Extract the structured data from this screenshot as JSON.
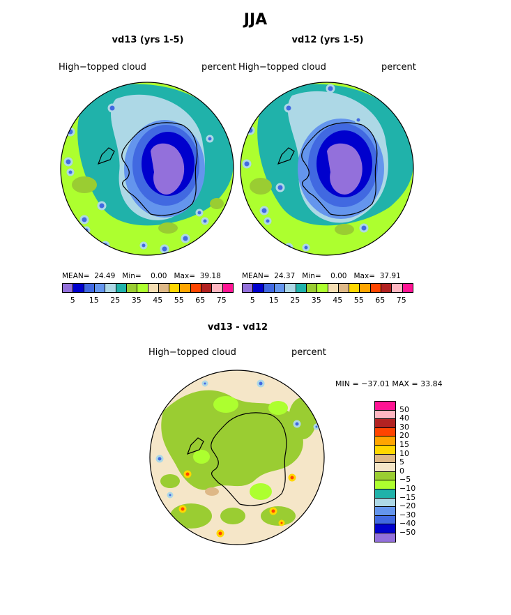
{
  "title": "JJA",
  "palette": {
    "levels": [
      "#9370db",
      "#0000cd",
      "#4169e1",
      "#6495ed",
      "#add8e6",
      "#20b2aa",
      "#9acd32",
      "#adff2f",
      "#f5deb3",
      "#deb887",
      "#ffd700",
      "#ffa500",
      "#ff4500",
      "#b22222",
      "#ffb6c1",
      "#ff1493"
    ],
    "diff": [
      "#ff1493",
      "#ffb6c1",
      "#b22222",
      "#ff4500",
      "#ffa500",
      "#ffd700",
      "#deb887",
      "#f5e6c8",
      "#9acd32",
      "#adff2f",
      "#20b2aa",
      "#add8e6",
      "#6495ed",
      "#4169e1",
      "#0000cd",
      "#9370db"
    ],
    "coast": "#000000"
  },
  "panels": [
    {
      "subtitle": "vd13 (yrs 1-5)",
      "field": "High−topped cloud",
      "units": "percent",
      "mean_label": "MEAN=",
      "mean": "24.49",
      "min_label": "Min=",
      "min": "0.00",
      "max_label": "Max=",
      "max": "39.18"
    },
    {
      "subtitle": "vd12 (yrs 1-5)",
      "field": "High−topped cloud",
      "units": "percent",
      "mean_label": "MEAN=",
      "mean": "24.37",
      "min_label": "Min=",
      "min": "0.00",
      "max_label": "Max=",
      "max": "37.91"
    }
  ],
  "colorbar_ticks": [
    "5",
    "15",
    "25",
    "35",
    "45",
    "55",
    "65",
    "75"
  ],
  "diff": {
    "subtitle": "vd13 - vd12",
    "field": "High−topped cloud",
    "units": "percent",
    "minmax": "MIN = −37.01 MAX =   33.84",
    "ticks": [
      "50",
      "40",
      "30",
      "20",
      "15",
      "10",
      "5",
      "0",
      "−5",
      "−10",
      "−15",
      "−20",
      "−30",
      "−40",
      "−50"
    ]
  },
  "chart_data": {
    "type": "heatmap",
    "projection": "south polar stereographic",
    "season": "JJA",
    "variable": "High-topped cloud",
    "units": "percent",
    "panels": [
      {
        "name": "vd13 (yrs 1-5)",
        "mean": 24.49,
        "min": 0.0,
        "max": 39.18,
        "levels": [
          5,
          10,
          15,
          20,
          25,
          30,
          35,
          40,
          45,
          50,
          55,
          60,
          65,
          70,
          75
        ]
      },
      {
        "name": "vd12 (yrs 1-5)",
        "mean": 24.37,
        "min": 0.0,
        "max": 37.91,
        "levels": [
          5,
          10,
          15,
          20,
          25,
          30,
          35,
          40,
          45,
          50,
          55,
          60,
          65,
          70,
          75
        ]
      },
      {
        "name": "vd13 - vd12",
        "min": -37.01,
        "max": 33.84,
        "levels": [
          -50,
          -40,
          -30,
          -20,
          -15,
          -10,
          -5,
          0,
          5,
          10,
          15,
          20,
          30,
          40,
          50
        ]
      }
    ]
  }
}
